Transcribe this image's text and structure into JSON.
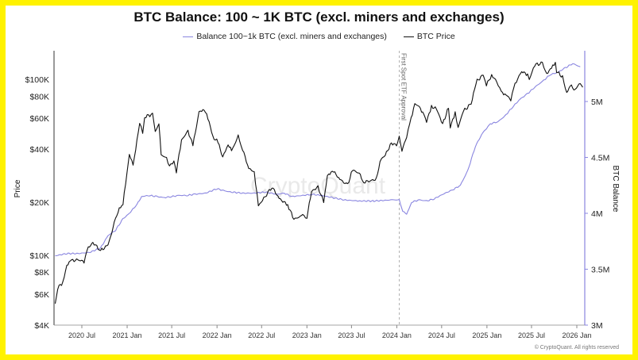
{
  "chart_data": {
    "type": "line",
    "title": "BTC Balance: 100 ~ 1K BTC (excl. miners and exchanges)",
    "ylabel_left": "Price",
    "ylabel_right": "BTC Balance",
    "y_left_scale": "log",
    "y_left_range": [
      4000,
      150000
    ],
    "y_left_ticks": [
      "$100K",
      "$80K",
      "$60K",
      "$40K",
      "$20K",
      "$10K",
      "$8K",
      "$6K",
      "$4K"
    ],
    "y_right_range": [
      3000000,
      5500000
    ],
    "y_right_ticks": [
      "5M",
      "4.5M",
      "4M",
      "3.5M",
      "3M"
    ],
    "x_range": [
      "2020-03",
      "2026-02"
    ],
    "x_ticks": [
      "2020 Jul",
      "2021 Jan",
      "2021 Jul",
      "2022 Jan",
      "2022 Jul",
      "2023 Jan",
      "2023 Jul",
      "2024 Jan",
      "2024 Jul",
      "2025 Jan",
      "2025 Jul",
      "2026 Jan"
    ],
    "legend_position": "top-center",
    "grid": false,
    "annotation": {
      "label": "First Spot ETF Approval",
      "date": "2024-01-11"
    },
    "watermark": "CryptoQuant",
    "copyright": "© CryptoQuant. All rights reserved",
    "series": [
      {
        "name": "Balance 100~1k BTC (excl. miners and exchanges)",
        "axis": "right",
        "color": "#8a86e0",
        "points": [
          [
            "2020-03-15",
            3620000
          ],
          [
            "2020-05-01",
            3640000
          ],
          [
            "2020-06-15",
            3640000
          ],
          [
            "2020-08-01",
            3650000
          ],
          [
            "2020-09-15",
            3690000
          ],
          [
            "2020-10-15",
            3800000
          ],
          [
            "2020-11-15",
            3850000
          ],
          [
            "2020-12-15",
            3950000
          ],
          [
            "2021-01-10",
            4000000
          ],
          [
            "2021-02-10",
            4080000
          ],
          [
            "2021-03-01",
            4150000
          ],
          [
            "2021-04-01",
            4160000
          ],
          [
            "2021-05-01",
            4150000
          ],
          [
            "2021-06-01",
            4140000
          ],
          [
            "2021-07-01",
            4150000
          ],
          [
            "2021-08-01",
            4160000
          ],
          [
            "2021-09-01",
            4160000
          ],
          [
            "2021-10-01",
            4170000
          ],
          [
            "2021-11-15",
            4180000
          ],
          [
            "2022-01-01",
            4220000
          ],
          [
            "2022-02-01",
            4200000
          ],
          [
            "2022-03-01",
            4190000
          ],
          [
            "2022-04-15",
            4180000
          ],
          [
            "2022-06-01",
            4180000
          ],
          [
            "2022-07-15",
            4190000
          ],
          [
            "2022-09-01",
            4170000
          ],
          [
            "2022-10-01",
            4180000
          ],
          [
            "2022-11-01",
            4150000
          ],
          [
            "2022-12-15",
            4160000
          ],
          [
            "2023-01-20",
            4170000
          ],
          [
            "2023-03-01",
            4160000
          ],
          [
            "2023-04-15",
            4140000
          ],
          [
            "2023-06-01",
            4120000
          ],
          [
            "2023-08-01",
            4110000
          ],
          [
            "2023-10-01",
            4110000
          ],
          [
            "2023-12-15",
            4120000
          ],
          [
            "2024-01-11",
            4120000
          ],
          [
            "2024-01-25",
            4020000
          ],
          [
            "2024-02-10",
            3990000
          ],
          [
            "2024-03-01",
            4100000
          ],
          [
            "2024-04-01",
            4120000
          ],
          [
            "2024-05-01",
            4110000
          ],
          [
            "2024-06-01",
            4130000
          ],
          [
            "2024-07-15",
            4180000
          ],
          [
            "2024-08-15",
            4210000
          ],
          [
            "2024-09-15",
            4250000
          ],
          [
            "2024-10-15",
            4380000
          ],
          [
            "2024-11-15",
            4600000
          ],
          [
            "2024-12-15",
            4720000
          ],
          [
            "2025-01-15",
            4800000
          ],
          [
            "2025-02-15",
            4820000
          ],
          [
            "2025-03-15",
            4870000
          ],
          [
            "2025-04-15",
            4950000
          ],
          [
            "2025-05-15",
            5020000
          ],
          [
            "2025-06-15",
            5070000
          ],
          [
            "2025-07-15",
            5130000
          ],
          [
            "2025-08-15",
            5180000
          ],
          [
            "2025-09-15",
            5240000
          ],
          [
            "2025-10-15",
            5260000
          ],
          [
            "2025-11-15",
            5300000
          ],
          [
            "2025-12-15",
            5340000
          ],
          [
            "2026-01-15",
            5310000
          ]
        ]
      },
      {
        "name": "BTC Price",
        "axis": "left",
        "color": "#111111",
        "points": [
          [
            "2020-03-15",
            5300
          ],
          [
            "2020-03-25",
            6500
          ],
          [
            "2020-04-15",
            7000
          ],
          [
            "2020-05-01",
            8800
          ],
          [
            "2020-05-20",
            9300
          ],
          [
            "2020-06-15",
            9400
          ],
          [
            "2020-07-10",
            9200
          ],
          [
            "2020-07-27",
            11000
          ],
          [
            "2020-08-15",
            11800
          ],
          [
            "2020-09-15",
            10600
          ],
          [
            "2020-10-15",
            11400
          ],
          [
            "2020-10-30",
            13500
          ],
          [
            "2020-11-15",
            16000
          ],
          [
            "2020-11-30",
            18500
          ],
          [
            "2020-12-15",
            19500
          ],
          [
            "2020-12-31",
            29000
          ],
          [
            "2021-01-10",
            38000
          ],
          [
            "2021-01-25",
            32000
          ],
          [
            "2021-02-10",
            45000
          ],
          [
            "2021-02-21",
            57000
          ],
          [
            "2021-03-05",
            49000
          ],
          [
            "2021-03-13",
            61000
          ],
          [
            "2021-04-14",
            63500
          ],
          [
            "2021-04-25",
            50000
          ],
          [
            "2021-05-10",
            57000
          ],
          [
            "2021-05-19",
            37000
          ],
          [
            "2021-06-10",
            36000
          ],
          [
            "2021-06-22",
            32000
          ],
          [
            "2021-07-10",
            34000
          ],
          [
            "2021-07-20",
            30000
          ],
          [
            "2021-08-10",
            45000
          ],
          [
            "2021-09-05",
            51000
          ],
          [
            "2021-09-25",
            42000
          ],
          [
            "2021-10-20",
            65000
          ],
          [
            "2021-11-10",
            68000
          ],
          [
            "2021-11-30",
            57000
          ],
          [
            "2021-12-15",
            47000
          ],
          [
            "2022-01-05",
            44000
          ],
          [
            "2022-01-24",
            36000
          ],
          [
            "2022-02-15",
            43000
          ],
          [
            "2022-03-01",
            39000
          ],
          [
            "2022-03-28",
            47500
          ],
          [
            "2022-04-15",
            40000
          ],
          [
            "2022-05-10",
            31000
          ],
          [
            "2022-06-01",
            30000
          ],
          [
            "2022-06-18",
            19000
          ],
          [
            "2022-07-10",
            21000
          ],
          [
            "2022-08-12",
            24500
          ],
          [
            "2022-09-10",
            21000
          ],
          [
            "2022-10-15",
            19300
          ],
          [
            "2022-11-09",
            16000
          ],
          [
            "2022-12-15",
            16800
          ],
          [
            "2023-01-01",
            16500
          ],
          [
            "2023-01-20",
            23000
          ],
          [
            "2023-02-15",
            24500
          ],
          [
            "2023-03-10",
            20000
          ],
          [
            "2023-03-25",
            28000
          ],
          [
            "2023-04-14",
            30500
          ],
          [
            "2023-05-15",
            27000
          ],
          [
            "2023-06-15",
            25000
          ],
          [
            "2023-07-05",
            30500
          ],
          [
            "2023-08-01",
            29200
          ],
          [
            "2023-08-20",
            26000
          ],
          [
            "2023-09-15",
            26500
          ],
          [
            "2023-10-10",
            27000
          ],
          [
            "2023-10-25",
            34500
          ],
          [
            "2023-11-15",
            37000
          ],
          [
            "2023-12-10",
            43500
          ],
          [
            "2023-12-31",
            42000
          ],
          [
            "2024-01-11",
            46500
          ],
          [
            "2024-01-22",
            39500
          ],
          [
            "2024-02-10",
            47000
          ],
          [
            "2024-02-28",
            60000
          ],
          [
            "2024-03-14",
            73000
          ],
          [
            "2024-04-01",
            69000
          ],
          [
            "2024-04-20",
            64000
          ],
          [
            "2024-05-01",
            57500
          ],
          [
            "2024-05-21",
            70000
          ],
          [
            "2024-06-10",
            68000
          ],
          [
            "2024-07-05",
            55500
          ],
          [
            "2024-07-29",
            69000
          ],
          [
            "2024-08-05",
            53500
          ],
          [
            "2024-08-25",
            64000
          ],
          [
            "2024-09-06",
            53500
          ],
          [
            "2024-09-28",
            66000
          ],
          [
            "2024-10-29",
            72500
          ],
          [
            "2024-11-12",
            89000
          ],
          [
            "2024-11-22",
            98000
          ],
          [
            "2024-12-17",
            106000
          ],
          [
            "2024-12-30",
            92500
          ],
          [
            "2025-01-20",
            106000
          ],
          [
            "2025-02-10",
            97000
          ],
          [
            "2025-02-28",
            84000
          ],
          [
            "2025-03-15",
            83000
          ],
          [
            "2025-04-08",
            76500
          ],
          [
            "2025-04-25",
            94000
          ],
          [
            "2025-05-22",
            111000
          ],
          [
            "2025-06-15",
            106000
          ],
          [
            "2025-06-22",
            100000
          ],
          [
            "2025-07-14",
            121000
          ],
          [
            "2025-08-14",
            123000
          ],
          [
            "2025-09-01",
            108000
          ],
          [
            "2025-09-20",
            115000
          ],
          [
            "2025-10-06",
            125000
          ],
          [
            "2025-10-11",
            111000
          ],
          [
            "2025-11-04",
            103000
          ],
          [
            "2025-11-21",
            84000
          ],
          [
            "2025-12-05",
            92000
          ],
          [
            "2025-12-25",
            87500
          ],
          [
            "2026-01-15",
            96000
          ],
          [
            "2026-01-25",
            90000
          ]
        ]
      }
    ]
  }
}
